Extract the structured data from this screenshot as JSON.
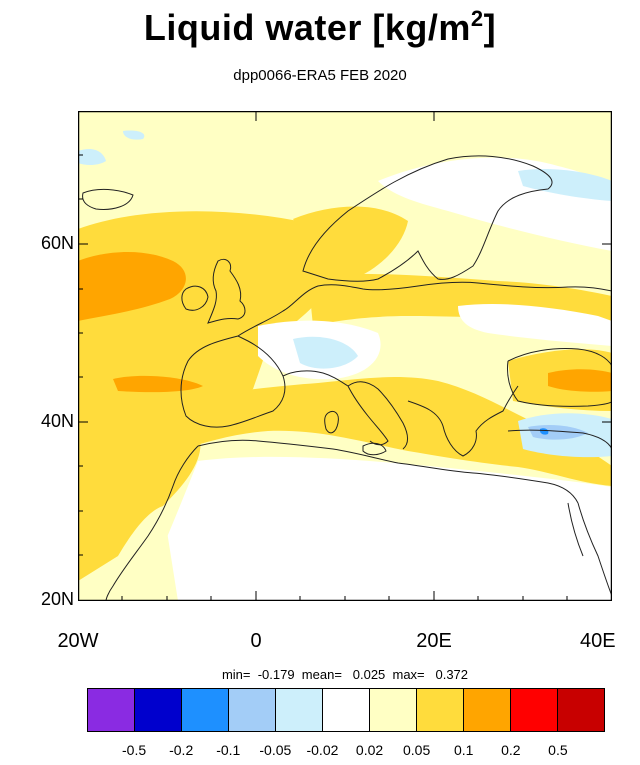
{
  "header": {
    "title_main": "Liquid water  [kg/m",
    "title_sup": "2",
    "title_end": "]",
    "subtitle": "dpp0066-ERA5 FEB 2020"
  },
  "map": {
    "region": "Europe / North Africa / Mediterranean",
    "lon_range": [
      -20,
      40
    ],
    "lat_range": [
      20,
      75
    ],
    "y_ticks": [
      "60N",
      "40N",
      "20N"
    ],
    "x_ticks": [
      "20W",
      "0",
      "20E",
      "40E"
    ]
  },
  "stats": {
    "text": "min=  -0.179  mean=   0.025  max=   0.372"
  },
  "colorbar": {
    "colors": [
      "#8a2be2",
      "#0000cd",
      "#1e90ff",
      "#a3cdf7",
      "#cdeffb",
      "#ffffff",
      "#ffffc4",
      "#ffdc3c",
      "#ffa500",
      "#ff0000",
      "#c80000"
    ],
    "labels": [
      "-0.5",
      "-0.2",
      "-0.1",
      "-0.05",
      "-0.02",
      "0.02",
      "0.05",
      "0.1",
      "0.2",
      "0.5"
    ]
  }
}
